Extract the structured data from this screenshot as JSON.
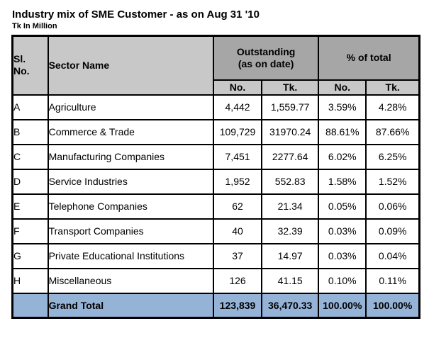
{
  "title": "Industry mix of SME Customer - as on Aug 31 '10",
  "unit_note": "Tk In Million",
  "colors": {
    "group_header_bg": "#a6a6a6",
    "sub_header_bg": "#c8c8c8",
    "grand_total_bg": "#95b3d7",
    "border": "#000000"
  },
  "header": {
    "sl_no": "Sl.\nNo.",
    "sector_name": "Sector Name",
    "outstanding_group": "Outstanding\n(as on date)",
    "pct_of_total_group": "% of total",
    "sub_no": "No.",
    "sub_tk": "Tk."
  },
  "table": {
    "rows": [
      {
        "sl": "A",
        "sector": "Agriculture",
        "out_no": "4,442",
        "out_tk": "1,559.77",
        "pct_no": "3.59%",
        "pct_tk": "4.28%"
      },
      {
        "sl": "B",
        "sector": "Commerce & Trade",
        "out_no": "109,729",
        "out_tk": "31970.24",
        "pct_no": "88.61%",
        "pct_tk": "87.66%"
      },
      {
        "sl": "C",
        "sector": "Manufacturing Companies",
        "out_no": "7,451",
        "out_tk": "2277.64",
        "pct_no": "6.02%",
        "pct_tk": "6.25%"
      },
      {
        "sl": "D",
        "sector": "Service Industries",
        "out_no": "1,952",
        "out_tk": "552.83",
        "pct_no": "1.58%",
        "pct_tk": "1.52%"
      },
      {
        "sl": "E",
        "sector": "Telephone Companies",
        "out_no": "62",
        "out_tk": "21.34",
        "pct_no": "0.05%",
        "pct_tk": "0.06%"
      },
      {
        "sl": "F",
        "sector": "Transport Companies",
        "out_no": "40",
        "out_tk": "32.39",
        "pct_no": "0.03%",
        "pct_tk": "0.09%"
      },
      {
        "sl": "G",
        "sector": "Private Educational Institutions",
        "out_no": "37",
        "out_tk": "14.97",
        "pct_no": "0.03%",
        "pct_tk": "0.04%"
      },
      {
        "sl": "H",
        "sector": "Miscellaneous",
        "out_no": "126",
        "out_tk": "41.15",
        "pct_no": "0.10%",
        "pct_tk": "0.11%"
      }
    ],
    "grand_total": {
      "label": "Grand Total",
      "out_no": "123,839",
      "out_tk": "36,470.33",
      "pct_no": "100.00%",
      "pct_tk": "100.00%"
    }
  },
  "chart_data": {
    "type": "table",
    "title": "Industry mix of SME Customer - as on Aug 31 '10",
    "unit": "Tk In Million",
    "columns": [
      "Sl. No.",
      "Sector Name",
      "Outstanding (as on date) No.",
      "Outstanding (as on date) Tk.",
      "% of total No.",
      "% of total Tk."
    ],
    "rows": [
      [
        "A",
        "Agriculture",
        4442,
        1559.77,
        3.59,
        4.28
      ],
      [
        "B",
        "Commerce & Trade",
        109729,
        31970.24,
        88.61,
        87.66
      ],
      [
        "C",
        "Manufacturing Companies",
        7451,
        2277.64,
        6.02,
        6.25
      ],
      [
        "D",
        "Service Industries",
        1952,
        552.83,
        1.58,
        1.52
      ],
      [
        "E",
        "Telephone Companies",
        62,
        21.34,
        0.05,
        0.06
      ],
      [
        "F",
        "Transport Companies",
        40,
        32.39,
        0.03,
        0.09
      ],
      [
        "G",
        "Private Educational Institutions",
        37,
        14.97,
        0.03,
        0.04
      ],
      [
        "H",
        "Miscellaneous",
        126,
        41.15,
        0.1,
        0.11
      ]
    ],
    "grand_total": [
      "",
      "Grand Total",
      123839,
      36470.33,
      100.0,
      100.0
    ],
    "pct_unit": "%"
  }
}
